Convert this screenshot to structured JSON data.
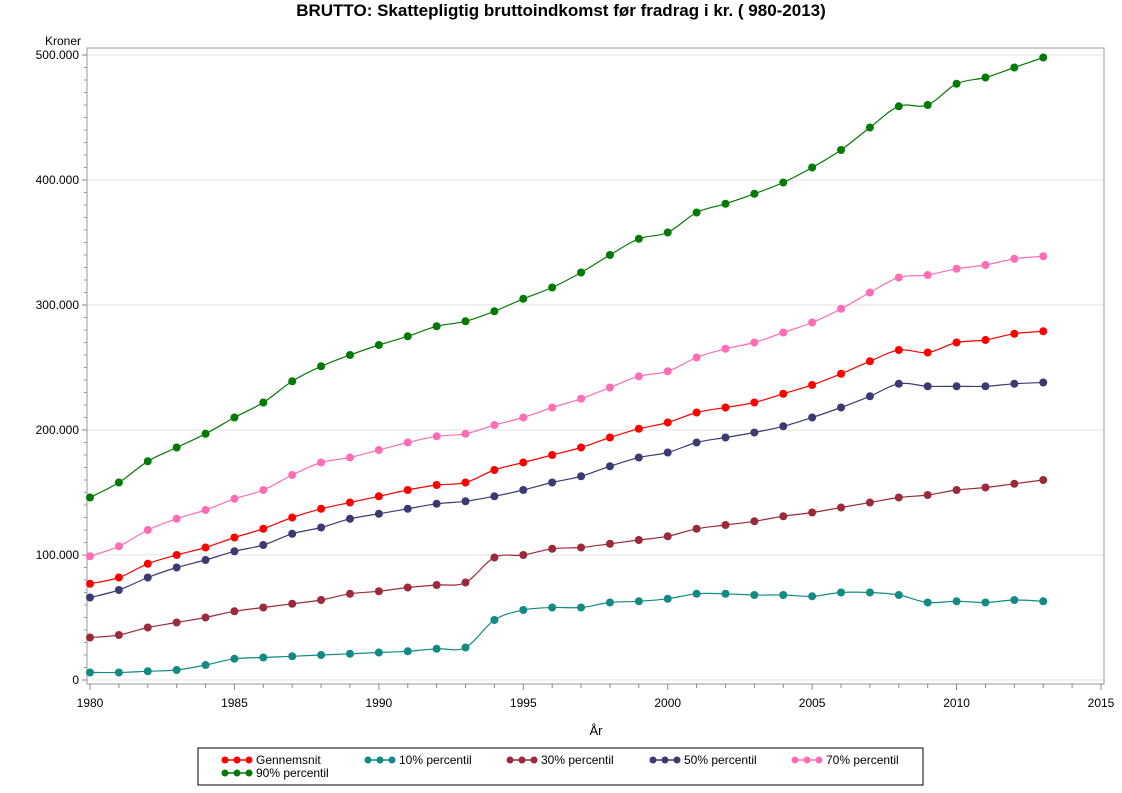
{
  "chart_data": {
    "type": "line",
    "title": "BRUTTO: Skattepligtig bruttoindkomst før fradrag i kr. ( 980-2013)",
    "xlabel": "År",
    "ylabel": "Kroner",
    "xlim": [
      1980,
      2015
    ],
    "ylim": [
      0,
      500000
    ],
    "xticks": [
      1980,
      1985,
      1990,
      1995,
      2000,
      2005,
      2010,
      2015
    ],
    "xtick_labels": [
      "1980",
      "1985",
      "1990",
      "1995",
      "2000",
      "2005",
      "2010",
      "2015"
    ],
    "yticks": [
      0,
      100000,
      200000,
      300000,
      400000,
      500000
    ],
    "ytick_labels": [
      "0",
      "100.000",
      "200.000",
      "300.000",
      "400.000",
      "500.000"
    ],
    "grid": "horizontal",
    "legend_position": "bottom",
    "x": [
      1980,
      1981,
      1982,
      1983,
      1984,
      1985,
      1986,
      1987,
      1988,
      1989,
      1990,
      1991,
      1992,
      1993,
      1994,
      1995,
      1996,
      1997,
      1998,
      1999,
      2000,
      2001,
      2002,
      2003,
      2004,
      2005,
      2006,
      2007,
      2008,
      2009,
      2010,
      2011,
      2012,
      2013
    ],
    "series": [
      {
        "name": "Gennemsnit",
        "color": "#FF0000",
        "values": [
          77000,
          82000,
          93000,
          100000,
          106000,
          114000,
          121000,
          130000,
          137000,
          142000,
          147000,
          152000,
          156000,
          158000,
          168000,
          174000,
          180000,
          186000,
          194000,
          201000,
          206000,
          214000,
          218000,
          222000,
          229000,
          236000,
          245000,
          255000,
          264000,
          262000,
          270000,
          272000,
          277000,
          279000
        ]
      },
      {
        "name": "10% percentil",
        "color": "#138A84",
        "values": [
          6000,
          6000,
          7000,
          8000,
          12000,
          17000,
          18000,
          19000,
          20000,
          21000,
          22000,
          23000,
          25000,
          26000,
          48000,
          56000,
          58000,
          58000,
          62000,
          63000,
          65000,
          69000,
          69000,
          68000,
          68000,
          67000,
          70000,
          70000,
          68000,
          62000,
          63000,
          62000,
          64000,
          63000
        ]
      },
      {
        "name": "30% percentil",
        "color": "#9B2A3C",
        "values": [
          34000,
          36000,
          42000,
          46000,
          50000,
          55000,
          58000,
          61000,
          64000,
          69000,
          71000,
          74000,
          76000,
          78000,
          98000,
          100000,
          105000,
          106000,
          109000,
          112000,
          115000,
          121000,
          124000,
          127000,
          131000,
          134000,
          138000,
          142000,
          146000,
          148000,
          152000,
          154000,
          157000,
          160000
        ]
      },
      {
        "name": "50% percentil",
        "color": "#3B3B74",
        "values": [
          66000,
          72000,
          82000,
          90000,
          96000,
          103000,
          108000,
          117000,
          122000,
          129000,
          133000,
          137000,
          141000,
          143000,
          147000,
          152000,
          158000,
          163000,
          171000,
          178000,
          182000,
          190000,
          194000,
          198000,
          203000,
          210000,
          218000,
          227000,
          237000,
          235000,
          235000,
          235000,
          237000,
          238000
        ]
      },
      {
        "name": "70% percentil",
        "color": "#FF6EB4",
        "values": [
          99000,
          107000,
          120000,
          129000,
          136000,
          145000,
          152000,
          164000,
          174000,
          178000,
          184000,
          190000,
          195000,
          197000,
          204000,
          210000,
          218000,
          225000,
          234000,
          243000,
          247000,
          258000,
          265000,
          270000,
          278000,
          286000,
          297000,
          310000,
          322000,
          324000,
          329000,
          332000,
          337000,
          339000
        ]
      },
      {
        "name": "90% percentil",
        "color": "#047A04",
        "values": [
          146000,
          158000,
          175000,
          186000,
          197000,
          210000,
          222000,
          239000,
          251000,
          260000,
          268000,
          275000,
          283000,
          287000,
          295000,
          305000,
          314000,
          326000,
          340000,
          353000,
          358000,
          374000,
          381000,
          389000,
          398000,
          410000,
          424000,
          442000,
          459000,
          460000,
          477000,
          482000,
          490000,
          498000
        ]
      }
    ]
  }
}
